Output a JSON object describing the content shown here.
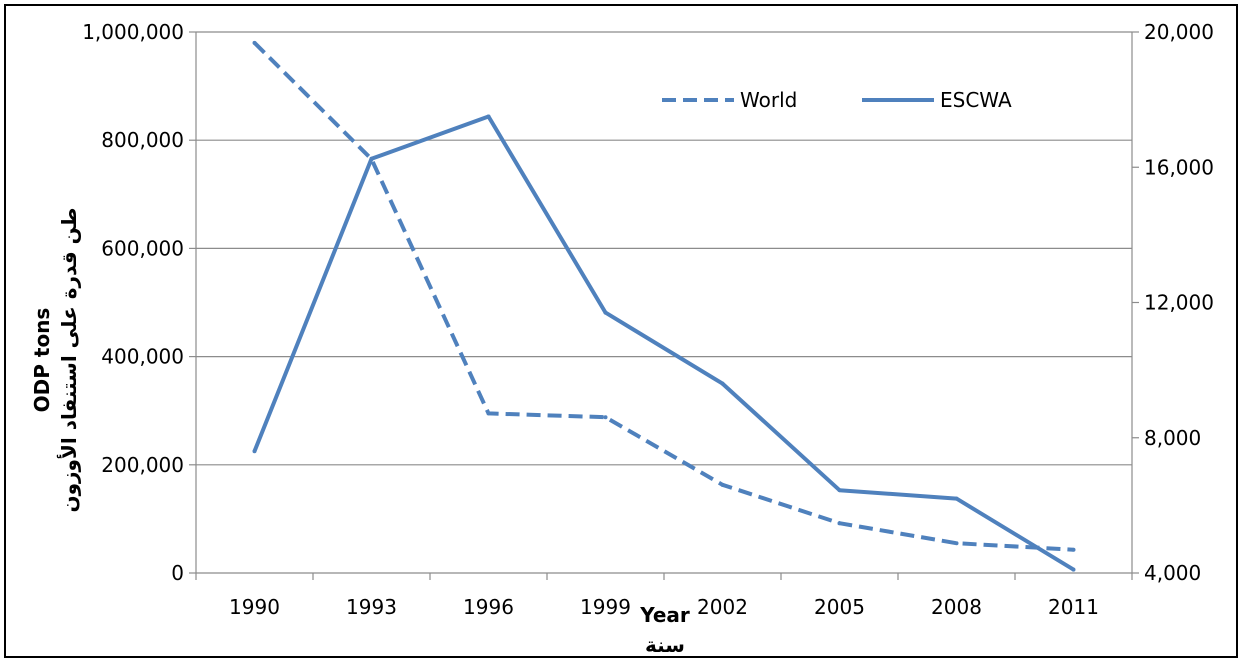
{
  "chart_data": {
    "type": "line",
    "categories": [
      "1990",
      "1993",
      "1996",
      "1999",
      "2002",
      "2005",
      "2008",
      "2011"
    ],
    "xlabel": [
      "Year",
      "سنة"
    ],
    "ylabel": [
      "ODP tons",
      "طن قدرة على استنفاد الأوزون"
    ],
    "y_left": {
      "ylim": [
        0,
        1000000
      ],
      "ticks": [
        "0",
        "200,000",
        "400,000",
        "600,000",
        "800,000",
        "1,000,000"
      ]
    },
    "y_right": {
      "ylim": [
        4000,
        20000
      ],
      "ticks": [
        "4,000",
        "8,000",
        "12,000",
        "16,000",
        "20,000"
      ]
    },
    "grid": true,
    "legend_position": "top-right",
    "series": [
      {
        "name": "World",
        "axis": "left",
        "style": "dashed",
        "color": "#4f81bd",
        "values": [
          980000,
          765000,
          295000,
          288000,
          163000,
          92000,
          55000,
          43000
        ]
      },
      {
        "name": "ESCWA",
        "axis": "right",
        "style": "solid",
        "color": "#4f81bd",
        "values": [
          7600,
          16250,
          17500,
          11700,
          9600,
          6450,
          6200,
          4100
        ]
      }
    ]
  }
}
